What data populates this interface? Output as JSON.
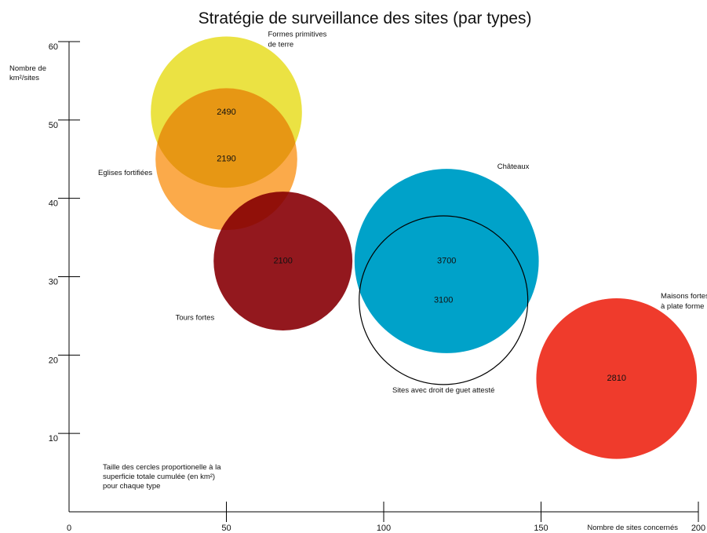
{
  "chart_data": {
    "type": "bubble",
    "title": "Stratégie de surveillance des sites (par types)",
    "xlabel": "Nombre de sites concernés",
    "ylabel_lines": [
      "Nombre de",
      "km²/sites"
    ],
    "xlim": [
      0,
      200
    ],
    "ylim": [
      0,
      60
    ],
    "x_ticks": [
      0,
      50,
      100,
      150,
      200
    ],
    "y_ticks": [
      10,
      20,
      30,
      40,
      50,
      60
    ],
    "grid": false,
    "note_lines": [
      "Taille des cercles proportionelle à la",
      "superficie totale cumulée (en km²)",
      "pour chaque type"
    ],
    "series": [
      {
        "label_lines": [
          "Formes primitives",
          "de terre"
        ],
        "x": 50,
        "y": 51,
        "size": 2490,
        "color": "#ebe243",
        "label_pos": "above-right"
      },
      {
        "label_lines": [
          "Eglises fortifiées"
        ],
        "x": 50,
        "y": 45,
        "size": 2190,
        "color": "#fbaa4a",
        "label_pos": "left"
      },
      {
        "label_lines": [
          "Tours fortes"
        ],
        "x": 68,
        "y": 32,
        "size": 2100,
        "color": "#93181e",
        "label_pos": "below-left"
      },
      {
        "label_lines": [
          "Châteaux"
        ],
        "x": 120,
        "y": 32,
        "size": 3700,
        "color": "#00a2c9",
        "label_pos": "above-right"
      },
      {
        "label_lines": [
          "Sites avec droit de guet attesté"
        ],
        "x": 119,
        "y": 27,
        "size": 3100,
        "color": "none",
        "outline": true,
        "label_pos": "below"
      },
      {
        "label_lines": [
          "Maisons fortes",
          "à plate forme"
        ],
        "x": 174,
        "y": 17,
        "size": 2810,
        "color": "#ef3b2c",
        "label_pos": "above-right"
      }
    ]
  }
}
